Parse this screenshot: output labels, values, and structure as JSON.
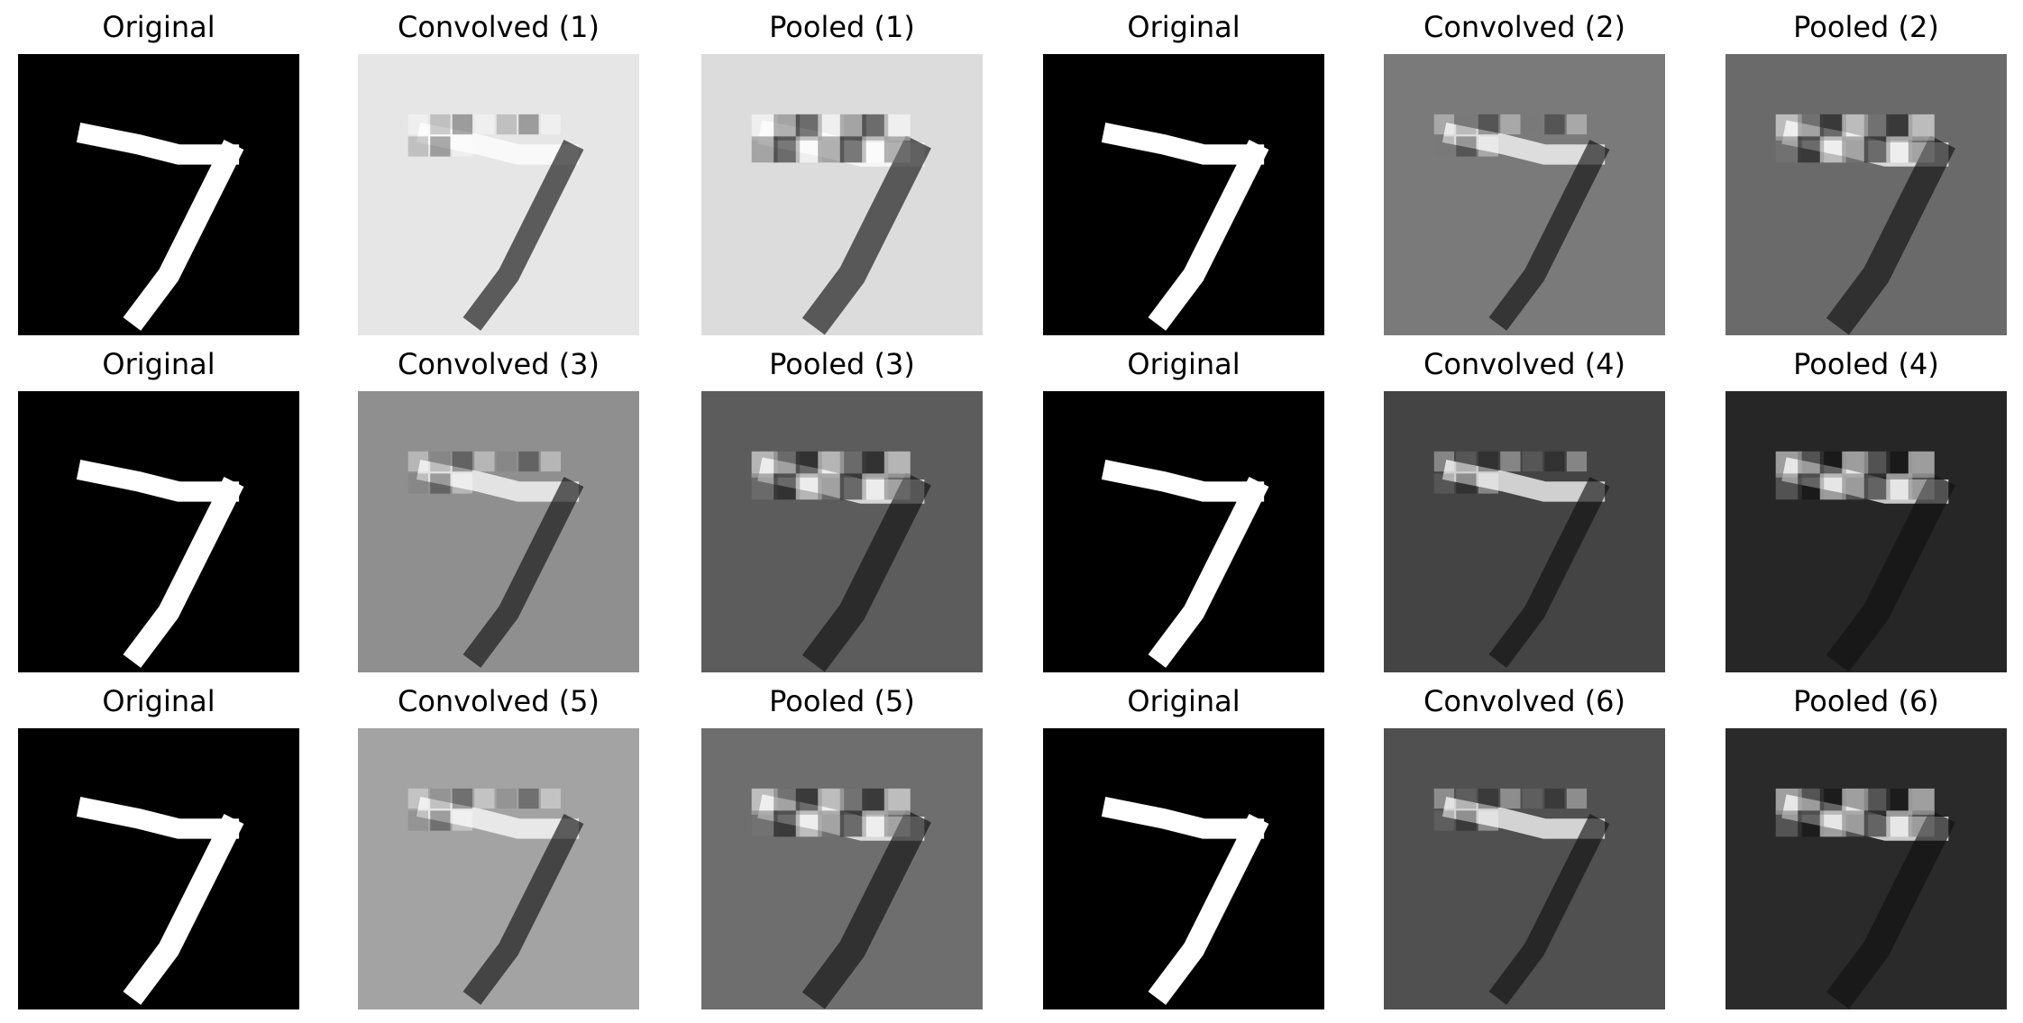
{
  "figure": {
    "panels": [
      {
        "title": "Original",
        "image": "digit-7-original",
        "base": "#000000"
      },
      {
        "title": "Convolved (1)",
        "image": "digit-7-feature-map",
        "base": "#e6e6e6"
      },
      {
        "title": "Pooled (1)",
        "image": "digit-7-pooled-map",
        "base": "#dcdcdc"
      },
      {
        "title": "Original",
        "image": "digit-7-original",
        "base": "#000000"
      },
      {
        "title": "Convolved (2)",
        "image": "digit-7-feature-map",
        "base": "#7a7a7a"
      },
      {
        "title": "Pooled (2)",
        "image": "digit-7-pooled-map",
        "base": "#6a6a6a"
      },
      {
        "title": "Original",
        "image": "digit-7-original",
        "base": "#000000"
      },
      {
        "title": "Convolved (3)",
        "image": "digit-7-feature-map",
        "base": "#8f8f8f"
      },
      {
        "title": "Pooled (3)",
        "image": "digit-7-pooled-map",
        "base": "#5c5c5c"
      },
      {
        "title": "Original",
        "image": "digit-7-original",
        "base": "#000000"
      },
      {
        "title": "Convolved (4)",
        "image": "digit-7-feature-map",
        "base": "#444444"
      },
      {
        "title": "Pooled (4)",
        "image": "digit-7-pooled-map",
        "base": "#262626"
      },
      {
        "title": "Original",
        "image": "digit-7-original",
        "base": "#000000"
      },
      {
        "title": "Convolved (5)",
        "image": "digit-7-feature-map",
        "base": "#a3a3a3"
      },
      {
        "title": "Pooled (5)",
        "image": "digit-7-pooled-map",
        "base": "#6e6e6e"
      },
      {
        "title": "Original",
        "image": "digit-7-original",
        "base": "#000000"
      },
      {
        "title": "Convolved (6)",
        "image": "digit-7-feature-map",
        "base": "#505050"
      },
      {
        "title": "Pooled (6)",
        "image": "digit-7-pooled-map",
        "base": "#2a2a2a"
      }
    ]
  }
}
